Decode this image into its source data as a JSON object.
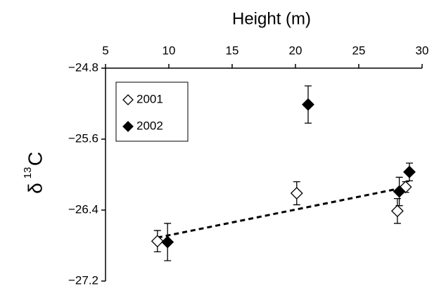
{
  "chart_data": {
    "type": "scatter",
    "x_label": "Height (m)",
    "y_label": {
      "symbol": "δ",
      "sup": "13",
      "element": "C"
    },
    "xlim": [
      5,
      30
    ],
    "xticks": [
      5,
      10,
      15,
      20,
      25,
      30
    ],
    "ylim": [
      -27.2,
      -24.8
    ],
    "yticks": [
      {
        "value": -24.8,
        "label": "−24.8"
      },
      {
        "value": -25.6,
        "label": "−25.6"
      },
      {
        "value": -26.4,
        "label": "−26.4"
      },
      {
        "value": -27.2,
        "label": "−27.2"
      }
    ],
    "series": [
      {
        "name": "2001",
        "color": "#000000",
        "filled": false,
        "x": [
          9.1,
          20.1,
          28.05,
          28.7
        ],
        "values": [
          -26.75,
          -26.21,
          -26.41,
          -26.14
        ],
        "errors": [
          0.12,
          0.13,
          0.14,
          0.06
        ]
      },
      {
        "name": "2002",
        "color": "#000000",
        "filled": true,
        "x": [
          9.9,
          21.0,
          28.2,
          29.0
        ],
        "values": [
          -26.76,
          -25.21,
          -26.19,
          -25.97
        ],
        "errors": [
          0.21,
          0.21,
          0.16,
          0.1
        ]
      }
    ],
    "trendline": {
      "x": [
        9.1,
        28.1
      ],
      "values": [
        -26.71,
        -26.16
      ]
    }
  }
}
